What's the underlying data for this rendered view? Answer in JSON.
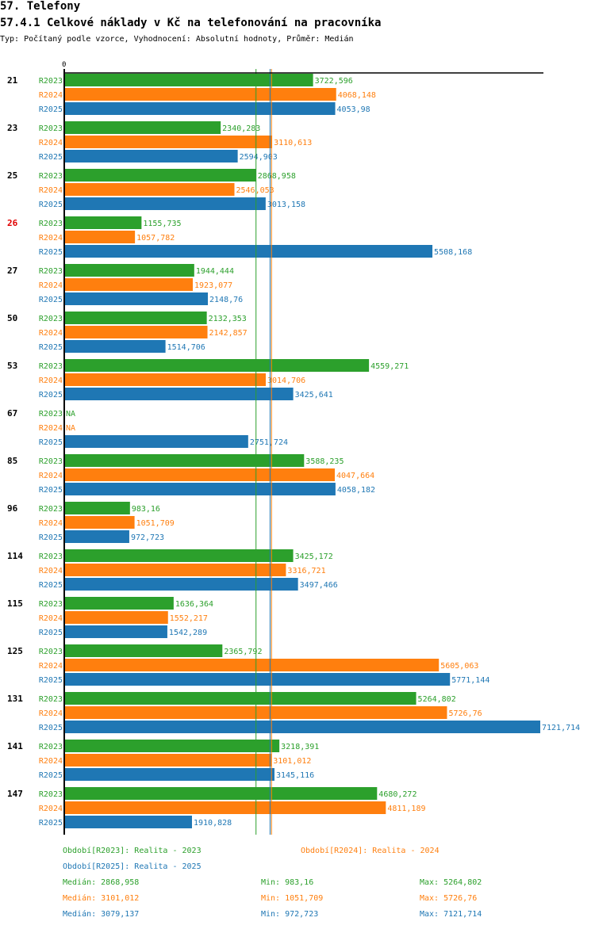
{
  "header": {
    "title": "57. Telefony",
    "subtitle": "57.4.1 Celkové náklady v Kč na telefonování na pracovníka",
    "meta": "Typ: Počítaný podle vzorce, Vyhodnocení: Absolutní hodnoty, Průměr: Medián"
  },
  "colors": {
    "R2023": "#2ca02c",
    "R2024": "#ff7f0e",
    "R2025": "#1f77b4",
    "highlight": "#e00000"
  },
  "chart_data": {
    "type": "bar",
    "orientation": "horizontal",
    "title": "57.4.1 Celkové náklady v Kč na telefonování na pracovníka",
    "axis_zero_label": "0",
    "xlim": [
      0,
      7121.714
    ],
    "grid": false,
    "categories": [
      "21",
      "23",
      "25",
      "26",
      "27",
      "50",
      "53",
      "67",
      "85",
      "96",
      "114",
      "115",
      "125",
      "131",
      "141",
      "147"
    ],
    "highlighted_category": "26",
    "series": [
      {
        "name": "R2023",
        "values": [
          3722.596,
          2340.283,
          2868.958,
          1155.735,
          1944.444,
          2132.353,
          4559.271,
          null,
          3588.235,
          983.16,
          3425.172,
          1636.364,
          2365.792,
          5264.802,
          3218.391,
          4680.272
        ],
        "labels": [
          "3722,596",
          "2340,283",
          "2868,958",
          "1155,735",
          "1944,444",
          "2132,353",
          "4559,271",
          "NA",
          "3588,235",
          "983,16",
          "3425,172",
          "1636,364",
          "2365,792",
          "5264,802",
          "3218,391",
          "4680,272"
        ]
      },
      {
        "name": "R2024",
        "values": [
          4068.148,
          3110.613,
          2546.053,
          1057.782,
          1923.077,
          2142.857,
          3014.706,
          null,
          4047.664,
          1051.709,
          3316.721,
          1552.217,
          5605.063,
          5726.76,
          3101.012,
          4811.189
        ],
        "labels": [
          "4068,148",
          "3110,613",
          "2546,053",
          "1057,782",
          "1923,077",
          "2142,857",
          "3014,706",
          "NA",
          "4047,664",
          "1051,709",
          "3316,721",
          "1552,217",
          "5605,063",
          "5726,76",
          "3101,012",
          "4811,189"
        ]
      },
      {
        "name": "R2025",
        "values": [
          4053.98,
          2594.903,
          3013.158,
          5508.168,
          2148.76,
          1514.706,
          3425.641,
          2751.724,
          4058.182,
          972.723,
          3497.466,
          1542.289,
          5771.144,
          7121.714,
          3145.116,
          1910.828
        ],
        "labels": [
          "4053,98",
          "2594,903",
          "3013,158",
          "5508,168",
          "2148,76",
          "1514,706",
          "3425,641",
          "2751,724",
          "4058,182",
          "972,723",
          "3497,466",
          "1542,289",
          "5771,144",
          "7121,714",
          "3145,116",
          "1910,828"
        ]
      }
    ],
    "medians": {
      "R2023": 2868.958,
      "R2024": 3101.012,
      "R2025": 3079.137
    },
    "legend": [
      {
        "key": "R2023",
        "text": "Období[R2023]: Realita - 2023"
      },
      {
        "key": "R2024",
        "text": "Období[R2024]: Realita - 2024"
      },
      {
        "key": "R2025",
        "text": "Období[R2025]: Realita - 2025"
      }
    ],
    "stats": [
      {
        "key": "R2023",
        "median": "Medián: 2868,958",
        "min": "Min: 983,16",
        "max": "Max: 5264,802"
      },
      {
        "key": "R2024",
        "median": "Medián: 3101,012",
        "min": "Min: 1051,709",
        "max": "Max: 5726,76"
      },
      {
        "key": "R2025",
        "median": "Medián: 3079,137",
        "min": "Min: 972,723",
        "max": "Max: 7121,714"
      }
    ]
  }
}
